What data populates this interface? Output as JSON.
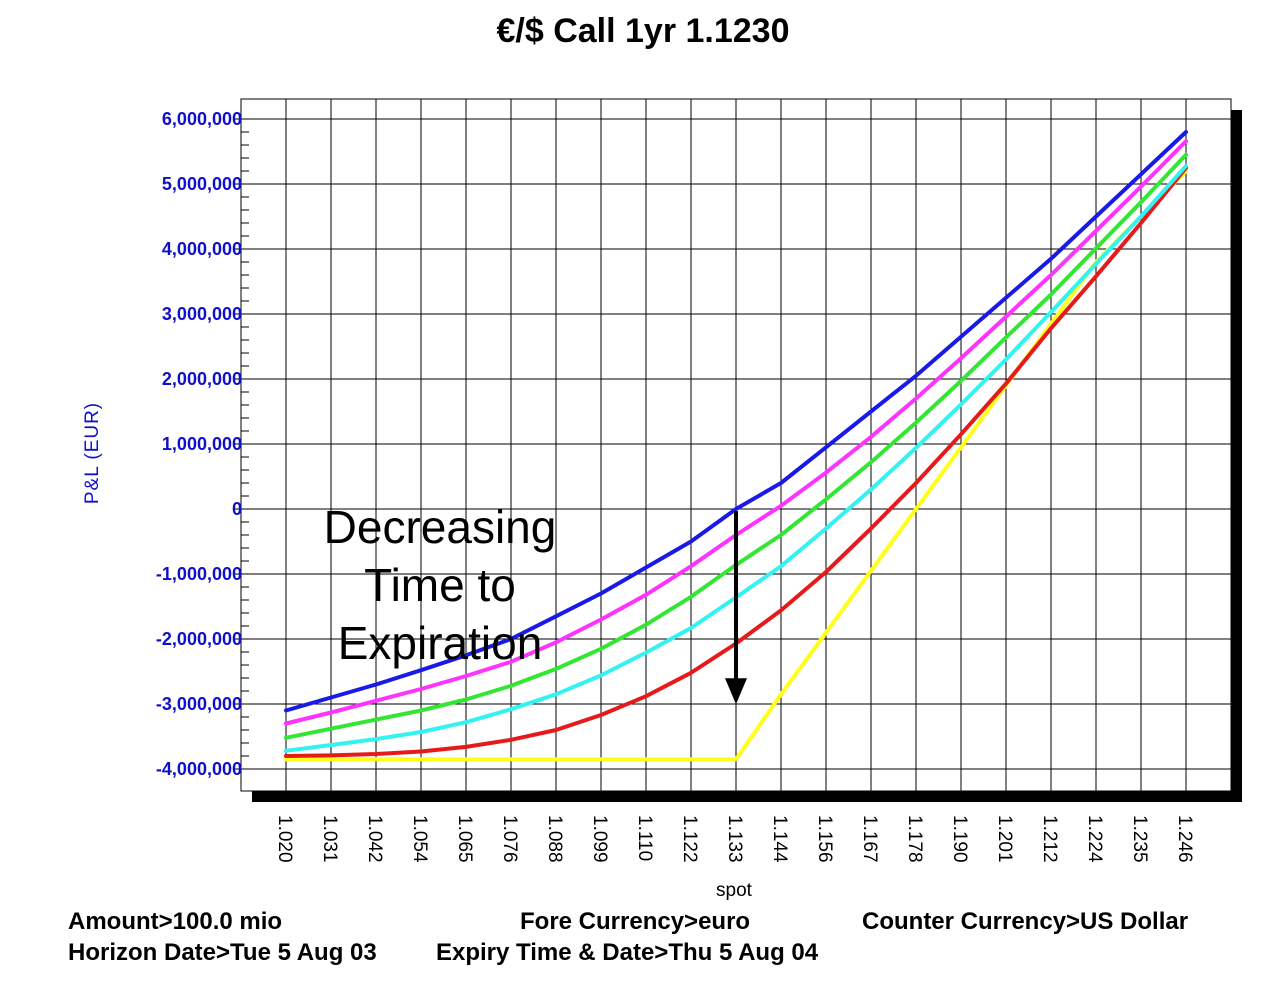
{
  "chart_data": {
    "type": "line",
    "title": "€/$ Call 1yr 1.1230",
    "xlabel": "spot",
    "ylabel": "P&L (EUR)",
    "x": [
      1.02,
      1.031,
      1.042,
      1.054,
      1.065,
      1.076,
      1.088,
      1.099,
      1.11,
      1.122,
      1.133,
      1.144,
      1.156,
      1.167,
      1.178,
      1.19,
      1.201,
      1.212,
      1.224,
      1.235,
      1.246
    ],
    "x_tick_labels": [
      "1.020",
      "1.031",
      "1.042",
      "1.054",
      "1.065",
      "1.076",
      "1.088",
      "1.099",
      "1.110",
      "1.122",
      "1.133",
      "1.144",
      "1.156",
      "1.167",
      "1.178",
      "1.190",
      "1.201",
      "1.212",
      "1.224",
      "1.235",
      "1.246"
    ],
    "y_tick_values": [
      6000000,
      5000000,
      4000000,
      3000000,
      2000000,
      1000000,
      0,
      -1000000,
      -2000000,
      -3000000,
      -4000000
    ],
    "y_tick_labels": [
      "6,000,000",
      "5,000,000",
      "4,000,000",
      "3,000,000",
      "2,000,000",
      "1,000,000",
      "0",
      "-1,000,000",
      "-2,000,000",
      "-3,000,000",
      "-4,000,000"
    ],
    "ylim": [
      -4300000,
      6300000
    ],
    "grid": true,
    "series": [
      {
        "name": "blue",
        "color": "#1a1ae6",
        "values": [
          -3100000,
          -2900000,
          -2700000,
          -2480000,
          -2250000,
          -2000000,
          -1650000,
          -1300000,
          -900000,
          -500000,
          0,
          400000,
          950000,
          1500000,
          2050000,
          2650000,
          3250000,
          3850000,
          4500000,
          5150000,
          5800000
        ]
      },
      {
        "name": "magenta",
        "color": "#ff33ff",
        "values": [
          -3300000,
          -3130000,
          -2950000,
          -2770000,
          -2570000,
          -2350000,
          -2050000,
          -1700000,
          -1320000,
          -880000,
          -400000,
          50000,
          560000,
          1110000,
          1700000,
          2320000,
          2960000,
          3600000,
          4280000,
          4960000,
          5660000
        ]
      },
      {
        "name": "green",
        "color": "#33e633",
        "values": [
          -3520000,
          -3380000,
          -3240000,
          -3100000,
          -2930000,
          -2720000,
          -2460000,
          -2150000,
          -1780000,
          -1350000,
          -860000,
          -400000,
          150000,
          720000,
          1330000,
          1970000,
          2640000,
          3300000,
          4010000,
          4720000,
          5450000
        ]
      },
      {
        "name": "cyan",
        "color": "#33f2f2",
        "values": [
          -3720000,
          -3630000,
          -3540000,
          -3430000,
          -3280000,
          -3080000,
          -2850000,
          -2560000,
          -2210000,
          -1830000,
          -1360000,
          -880000,
          -300000,
          300000,
          940000,
          1610000,
          2300000,
          3030000,
          3770000,
          4500000,
          5280000
        ]
      },
      {
        "name": "red",
        "color": "#e61a1a",
        "values": [
          -3800000,
          -3790000,
          -3770000,
          -3730000,
          -3660000,
          -3550000,
          -3400000,
          -3170000,
          -2880000,
          -2520000,
          -2070000,
          -1560000,
          -970000,
          -300000,
          400000,
          1150000,
          1930000,
          2780000,
          3580000,
          4400000,
          5250000
        ]
      },
      {
        "name": "yellow",
        "color": "#ffff1a",
        "values": [
          -3850000,
          -3850000,
          -3850000,
          -3850000,
          -3850000,
          -3850000,
          -3850000,
          -3850000,
          -3850000,
          -3850000,
          -3850000,
          -2850000,
          -1900000,
          -950000,
          0,
          950000,
          1900000,
          2850000,
          3800000,
          4500000,
          5200000
        ]
      }
    ],
    "annotation": {
      "lines": [
        "Decreasing",
        "Time to",
        "Expiration"
      ],
      "arrow_x": 1.133,
      "arrow_from": 0,
      "arrow_to": -2850000
    }
  },
  "footer": {
    "amount": "Amount>100.0 mio",
    "fore_currency": "Fore Currency>euro",
    "counter_currency": "Counter Currency>US Dollar",
    "horizon_date": "Horizon Date>Tue 5 Aug 03",
    "expiry": "Expiry Time & Date>Thu 5 Aug 04"
  }
}
